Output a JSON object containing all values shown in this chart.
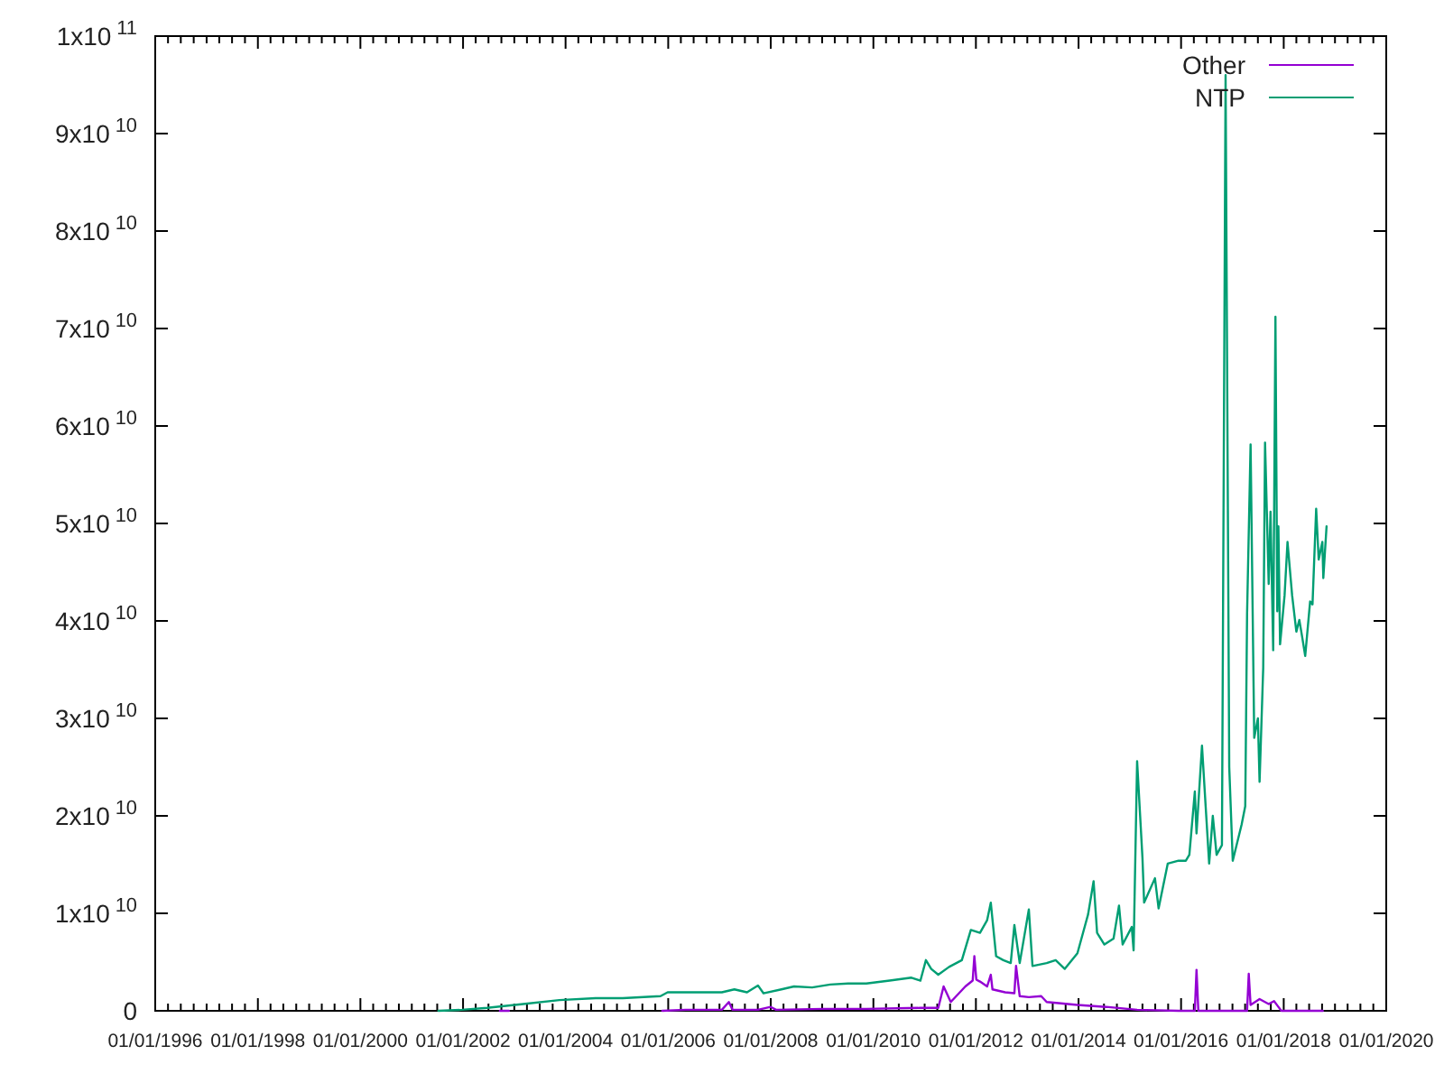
{
  "chart_data": {
    "type": "line",
    "xlim": [
      "1996-01-01",
      "2020-01-01"
    ],
    "ylim": [
      0,
      100000000000.0
    ],
    "xticks": [
      {
        "value": "1996-01-01",
        "label": "01/01/1996"
      },
      {
        "value": "1996-04-01",
        "label": null
      },
      {
        "value": "1996-07-01",
        "label": null
      },
      {
        "value": "1996-10-01",
        "label": null
      },
      {
        "value": "1997-01-01",
        "label": null
      },
      {
        "value": "1997-04-01",
        "label": null
      },
      {
        "value": "1997-07-01",
        "label": null
      },
      {
        "value": "1997-10-01",
        "label": null
      },
      {
        "value": "1998-01-01",
        "label": "01/01/1998"
      },
      {
        "value": "1998-04-01",
        "label": null
      },
      {
        "value": "1998-07-01",
        "label": null
      },
      {
        "value": "1998-10-01",
        "label": null
      },
      {
        "value": "1999-01-01",
        "label": null
      },
      {
        "value": "1999-04-01",
        "label": null
      },
      {
        "value": "1999-07-01",
        "label": null
      },
      {
        "value": "1999-10-01",
        "label": null
      },
      {
        "value": "2000-01-01",
        "label": "01/01/2000"
      },
      {
        "value": "2000-04-01",
        "label": null
      },
      {
        "value": "2000-07-01",
        "label": null
      },
      {
        "value": "2000-10-01",
        "label": null
      },
      {
        "value": "2001-01-01",
        "label": null
      },
      {
        "value": "2001-04-01",
        "label": null
      },
      {
        "value": "2001-07-01",
        "label": null
      },
      {
        "value": "2001-10-01",
        "label": null
      },
      {
        "value": "2002-01-01",
        "label": "01/01/2002"
      },
      {
        "value": "2002-04-01",
        "label": null
      },
      {
        "value": "2002-07-01",
        "label": null
      },
      {
        "value": "2002-10-01",
        "label": null
      },
      {
        "value": "2003-01-01",
        "label": null
      },
      {
        "value": "2003-04-01",
        "label": null
      },
      {
        "value": "2003-07-01",
        "label": null
      },
      {
        "value": "2003-10-01",
        "label": null
      },
      {
        "value": "2004-01-01",
        "label": "01/01/2004"
      },
      {
        "value": "2004-04-01",
        "label": null
      },
      {
        "value": "2004-07-01",
        "label": null
      },
      {
        "value": "2004-10-01",
        "label": null
      },
      {
        "value": "2005-01-01",
        "label": null
      },
      {
        "value": "2005-04-01",
        "label": null
      },
      {
        "value": "2005-07-01",
        "label": null
      },
      {
        "value": "2005-10-01",
        "label": null
      },
      {
        "value": "2006-01-01",
        "label": "01/01/2006"
      },
      {
        "value": "2006-04-01",
        "label": null
      },
      {
        "value": "2006-07-01",
        "label": null
      },
      {
        "value": "2006-10-01",
        "label": null
      },
      {
        "value": "2007-01-01",
        "label": null
      },
      {
        "value": "2007-04-01",
        "label": null
      },
      {
        "value": "2007-07-01",
        "label": null
      },
      {
        "value": "2007-10-01",
        "label": null
      },
      {
        "value": "2008-01-01",
        "label": "01/01/2008"
      },
      {
        "value": "2008-04-01",
        "label": null
      },
      {
        "value": "2008-07-01",
        "label": null
      },
      {
        "value": "2008-10-01",
        "label": null
      },
      {
        "value": "2009-01-01",
        "label": null
      },
      {
        "value": "2009-04-01",
        "label": null
      },
      {
        "value": "2009-07-01",
        "label": null
      },
      {
        "value": "2009-10-01",
        "label": null
      },
      {
        "value": "2010-01-01",
        "label": "01/01/2010"
      },
      {
        "value": "2010-04-01",
        "label": null
      },
      {
        "value": "2010-07-01",
        "label": null
      },
      {
        "value": "2010-10-01",
        "label": null
      },
      {
        "value": "2011-01-01",
        "label": null
      },
      {
        "value": "2011-04-01",
        "label": null
      },
      {
        "value": "2011-07-01",
        "label": null
      },
      {
        "value": "2011-10-01",
        "label": null
      },
      {
        "value": "2012-01-01",
        "label": "01/01/2012"
      },
      {
        "value": "2012-04-01",
        "label": null
      },
      {
        "value": "2012-07-01",
        "label": null
      },
      {
        "value": "2012-10-01",
        "label": null
      },
      {
        "value": "2013-01-01",
        "label": null
      },
      {
        "value": "2013-04-01",
        "label": null
      },
      {
        "value": "2013-07-01",
        "label": null
      },
      {
        "value": "2013-10-01",
        "label": null
      },
      {
        "value": "2014-01-01",
        "label": "01/01/2014"
      },
      {
        "value": "2014-04-01",
        "label": null
      },
      {
        "value": "2014-07-01",
        "label": null
      },
      {
        "value": "2014-10-01",
        "label": null
      },
      {
        "value": "2015-01-01",
        "label": null
      },
      {
        "value": "2015-04-01",
        "label": null
      },
      {
        "value": "2015-07-01",
        "label": null
      },
      {
        "value": "2015-10-01",
        "label": null
      },
      {
        "value": "2016-01-01",
        "label": "01/01/2016"
      },
      {
        "value": "2016-04-01",
        "label": null
      },
      {
        "value": "2016-07-01",
        "label": null
      },
      {
        "value": "2016-10-01",
        "label": null
      },
      {
        "value": "2017-01-01",
        "label": null
      },
      {
        "value": "2017-04-01",
        "label": null
      },
      {
        "value": "2017-07-01",
        "label": null
      },
      {
        "value": "2017-10-01",
        "label": null
      },
      {
        "value": "2018-01-01",
        "label": "01/01/2018"
      },
      {
        "value": "2018-04-01",
        "label": null
      },
      {
        "value": "2018-07-01",
        "label": null
      },
      {
        "value": "2018-10-01",
        "label": null
      },
      {
        "value": "2019-01-01",
        "label": null
      },
      {
        "value": "2019-04-01",
        "label": null
      },
      {
        "value": "2019-07-01",
        "label": null
      },
      {
        "value": "2019-10-01",
        "label": null
      },
      {
        "value": "2020-01-01",
        "label": "01/01/2020"
      }
    ],
    "yticks": [
      0,
      {
        "value": 10000000000.0,
        "label": "1x10$^{10}$"
      },
      {
        "value": 20000000000.0,
        "label": "2x10$^{10}$"
      },
      {
        "value": 30000000000.0,
        "label": "3x10$^{10}$"
      },
      {
        "value": 40000000000.0,
        "label": "4x10$^{10}$"
      },
      {
        "value": 50000000000.0,
        "label": "5x10$^{10}$"
      },
      {
        "value": 60000000000.0,
        "label": "6x10$^{10}$"
      },
      {
        "value": 70000000000.0,
        "label": "7x10$^{10}$"
      },
      {
        "value": 80000000000.0,
        "label": "8x10$^{10}$"
      },
      {
        "value": 90000000000.0,
        "label": "9x10$^{10}$"
      },
      {
        "value": 100000000000.0,
        "label": "1x10$^{11}$"
      }
    ],
    "legend": "top right",
    "series": [
      {
        "name": "Other",
        "color": "#9400d3",
        "x": [
          "2002-09-20",
          "2002-11-23",
          "2004-01-01",
          "2005-11-19",
          "2006-05-05",
          "2007-01-18",
          "2007-03-09",
          "2007-04-04",
          "2007-10-02",
          "2008-01-01",
          "2008-02-08",
          "2009-01-08",
          "2009-11-12",
          "2010-12-02",
          "2011-04-08",
          "2011-05-16",
          "2011-07-06",
          "2011-08-14",
          "2011-10-18",
          "2011-12-09",
          "2011-12-21",
          "2012-01-04",
          "2012-01-30",
          "2012-03-21",
          "2012-04-16",
          "2012-04-28",
          "2012-07-27",
          "2012-10-01",
          "2012-10-13",
          "2012-11-08",
          "2013-01-12",
          "2013-04-10",
          "2013-05-19",
          "2013-12-24",
          "2014-07-17",
          "2015-02-22",
          "2015-12-14",
          "2016-04-08",
          "2016-04-20",
          "2016-05-03",
          "2017-04-15",
          "2017-04-27",
          "2017-05-10",
          "2017-07-13",
          "2017-09-16",
          "2017-10-24",
          "2017-11-19",
          "2017-12-15",
          "2018-10-06"
        ],
        "values": [
          0,
          0,
          null,
          0,
          100000000.0,
          100000000.0,
          900000000.0,
          100000000.0,
          100000000.0,
          400000000.0,
          100000000.0,
          200000000.0,
          200000000.0,
          300000000.0,
          300000000.0,
          2500000000.0,
          900000000.0,
          1500000000.0,
          2500000000.0,
          3100000000.0,
          5600000000.0,
          3200000000.0,
          3000000000.0,
          2500000000.0,
          3700000000.0,
          2200000000.0,
          1900000000.0,
          1800000000.0,
          4600000000.0,
          1500000000.0,
          1400000000.0,
          1500000000.0,
          900000000.0,
          600000000.0,
          400000000.0,
          100000000.0,
          0,
          0,
          4200000000.0,
          0,
          0,
          3800000000.0,
          600000000.0,
          1200000000.0,
          700000000.0,
          1000000000.0,
          500000000.0,
          0,
          0
        ]
      },
      {
        "name": "NTP",
        "color": "#009e73",
        "x": [
          "2001-07-09",
          "2001-12-24",
          "2002-06-21",
          "2003-03-05",
          "2003-11-18",
          "2004-08-02",
          "2005-02-11",
          "2005-11-07",
          "2005-12-28",
          "2006-07-08",
          "2007-01-18",
          "2007-04-17",
          "2007-07-16",
          "2007-10-02",
          "2007-11-10",
          "2008-03-17",
          "2008-06-15",
          "2008-10-22",
          "2009-02-28",
          "2009-07-05",
          "2009-11-12",
          "2010-04-27",
          "2010-09-29",
          "2010-12-02",
          "2011-01-10",
          "2011-02-17",
          "2011-04-08",
          "2011-06-24",
          "2011-09-23",
          "2011-11-26",
          "2012-01-30",
          "2012-03-21",
          "2012-04-16",
          "2012-05-24",
          "2012-07-14",
          "2012-09-05",
          "2012-10-01",
          "2012-11-08",
          "2013-01-12",
          "2013-02-07",
          "2013-05-19",
          "2013-07-22",
          "2013-09-25",
          "2013-12-24",
          "2014-03-10",
          "2014-04-18",
          "2014-05-13",
          "2014-07-04",
          "2014-09-07",
          "2014-10-16",
          "2014-11-11",
          "2015-01-15",
          "2015-01-28",
          "2015-02-22",
          "2015-04-01",
          "2015-04-13",
          "2015-06-29",
          "2015-07-25",
          "2015-09-28",
          "2015-12-14",
          "2016-02-04",
          "2016-02-29",
          "2016-04-08",
          "2016-04-20",
          "2016-05-29",
          "2016-06-24",
          "2016-07-19",
          "2016-08-14",
          "2016-09-10",
          "2016-10-18",
          "2016-11-13",
          "2016-12-09",
          "2017-01-03",
          "2017-03-07",
          "2017-04-02",
          "2017-04-15",
          "2017-05-10",
          "2017-06-05",
          "2017-07-01",
          "2017-07-13",
          "2017-08-08",
          "2017-08-21",
          "2017-09-16",
          "2017-09-29",
          "2017-10-18",
          "2017-11-03",
          "2017-11-16",
          "2017-11-24",
          "2017-12-06",
          "2018-01-07",
          "2018-01-28",
          "2018-03-02",
          "2018-04-01",
          "2018-04-22",
          "2018-05-13",
          "2018-06-03",
          "2018-07-08",
          "2018-07-25",
          "2018-08-20",
          "2018-09-07",
          "2018-10-03",
          "2018-10-10",
          "2018-11-02"
        ],
        "values": [
          0,
          100000000.0,
          300000000.0,
          700000000.0,
          1100000000.0,
          1300000000.0,
          1300000000.0,
          1500000000.0,
          1900000000.0,
          1900000000.0,
          1900000000.0,
          2200000000.0,
          1900000000.0,
          2600000000.0,
          1800000000.0,
          2200000000.0,
          2500000000.0,
          2400000000.0,
          2700000000.0,
          2800000000.0,
          2800000000.0,
          3100000000.0,
          3400000000.0,
          3100000000.0,
          5200000000.0,
          4300000000.0,
          3700000000.0,
          4500000000.0,
          5200000000.0,
          8300000000.0,
          8000000000.0,
          9300000000.0,
          11100000000.0,
          5600000000.0,
          5200000000.0,
          4900000000.0,
          8800000000.0,
          4900000000.0,
          10400000000.0,
          4600000000.0,
          4900000000.0,
          5200000000.0,
          4300000000.0,
          5900000000.0,
          9900000000.0,
          13300000000.0,
          8000000000.0,
          6800000000.0,
          7400000000.0,
          10800000000.0,
          6800000000.0,
          8600000000.0,
          6200000000.0,
          25600000000.0,
          15700000000.0,
          11100000000.0,
          13600000000.0,
          10500000000.0,
          15100000000.0,
          15400000000.0,
          15400000000.0,
          16000000000.0,
          22500000000.0,
          18200000000.0,
          27200000000.0,
          21000000000.0,
          15100000000.0,
          20000000000.0,
          16000000000.0,
          17000000000.0,
          96000000000.0,
          25000000000.0,
          15400000000.0,
          19100000000.0,
          21000000000.0,
          40700000000.0,
          58100000000.0,
          28000000000.0,
          30000000000.0,
          23500000000.0,
          35200000000.0,
          58300000000.0,
          43800000000.0,
          51200000000.0,
          37000000000.0,
          71200000000.0,
          41000000000.0,
          49700000000.0,
          37600000000.0,
          42600000000.0,
          48100000000.0,
          42600000000.0,
          38900000000.0,
          40100000000.0,
          38300000000.0,
          36400000000.0,
          42000000000.0,
          41700000000.0,
          51500000000.0,
          46300000000.0,
          48100000000.0,
          44400000000.0,
          49700000000.0
        ]
      }
    ]
  }
}
